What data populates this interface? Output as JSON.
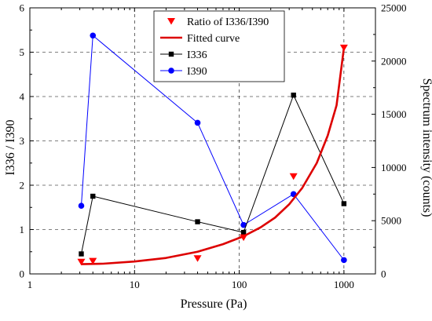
{
  "chart_data": {
    "type": "scatter",
    "xlabel": "Pressure (Pa)",
    "ylabel": "I336 / I390",
    "y2label": "Spectrum intensity (counts)",
    "x_scale": "log",
    "xlim": [
      1,
      2000
    ],
    "ylim": [
      0,
      6
    ],
    "y2lim": [
      0,
      25000
    ],
    "x_ticks": [
      1,
      10,
      100,
      1000
    ],
    "x_tick_labels": [
      "1",
      "10",
      "100",
      "1000"
    ],
    "y_ticks": [
      0,
      1,
      2,
      3,
      4,
      5,
      6
    ],
    "y_tick_labels": [
      "0",
      "1",
      "2",
      "3",
      "4",
      "5",
      "6"
    ],
    "y2_ticks": [
      0,
      5000,
      10000,
      15000,
      20000,
      25000
    ],
    "y2_tick_labels": [
      "0",
      "5000",
      "10000",
      "15000",
      "20000",
      "25000"
    ],
    "grid": true,
    "legend_position": "top-center",
    "series": [
      {
        "name": "Ratio of I336/I390",
        "axis": "left",
        "marker": "triangle-down",
        "line": false,
        "color": "#ff0000",
        "x": [
          3.1,
          4,
          40,
          110,
          330,
          1000
        ],
        "y": [
          0.27,
          0.29,
          0.35,
          0.82,
          2.2,
          5.1
        ]
      },
      {
        "name": "Fitted curve",
        "axis": "left",
        "marker": "none",
        "line": true,
        "color": "#dd0000",
        "x": [
          3.1,
          5,
          10,
          20,
          40,
          70,
          110,
          160,
          220,
          300,
          400,
          550,
          700,
          850,
          1000
        ],
        "y": [
          0.22,
          0.23,
          0.28,
          0.36,
          0.5,
          0.67,
          0.85,
          1.05,
          1.27,
          1.57,
          1.94,
          2.5,
          3.12,
          3.8,
          5.1
        ]
      },
      {
        "name": "I336",
        "axis": "right",
        "marker": "square",
        "line": true,
        "color": "#000000",
        "x": [
          3.1,
          4,
          40,
          110,
          330,
          1000
        ],
        "y": [
          1880,
          7300,
          4900,
          3900,
          16800,
          6600
        ]
      },
      {
        "name": "I390",
        "axis": "right",
        "marker": "circle",
        "line": true,
        "color": "#0000ff",
        "x": [
          3.1,
          4,
          40,
          110,
          330,
          1000
        ],
        "y": [
          6400,
          22400,
          14200,
          4600,
          7500,
          1300
        ]
      }
    ]
  }
}
